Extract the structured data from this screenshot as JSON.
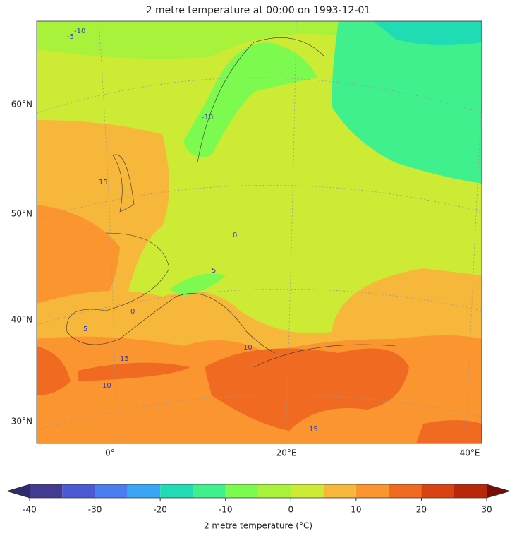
{
  "title": "2 metre temperature at 00:00 on 1993-12-01",
  "lat_labels": [
    "60°N",
    "50°N",
    "40°N",
    "30°N"
  ],
  "lon_labels": [
    "0°",
    "20°E",
    "40°E"
  ],
  "contour_labels": [
    -10,
    -5,
    -10,
    15,
    0,
    5,
    0,
    10,
    5,
    15,
    10,
    15
  ],
  "colorbar": {
    "label": "2 metre temperature (°C)",
    "levels": [
      -40,
      -35,
      -30,
      -25,
      -20,
      -15,
      -10,
      -5,
      0,
      5,
      10,
      15,
      20,
      25,
      30
    ],
    "colors": [
      "#423b92",
      "#4a59d4",
      "#4a7ef0",
      "#3aa4f5",
      "#1fdcb4",
      "#40f08c",
      "#7dfa50",
      "#a8f23b",
      "#cdeb34",
      "#f7b73a",
      "#fb9530",
      "#f06a22",
      "#d84312",
      "#b82808"
    ],
    "extend_colors": [
      "#302a6e",
      "#7a0d03"
    ],
    "ticks": [
      -40,
      -30,
      -20,
      -10,
      0,
      10,
      20,
      30
    ]
  }
}
